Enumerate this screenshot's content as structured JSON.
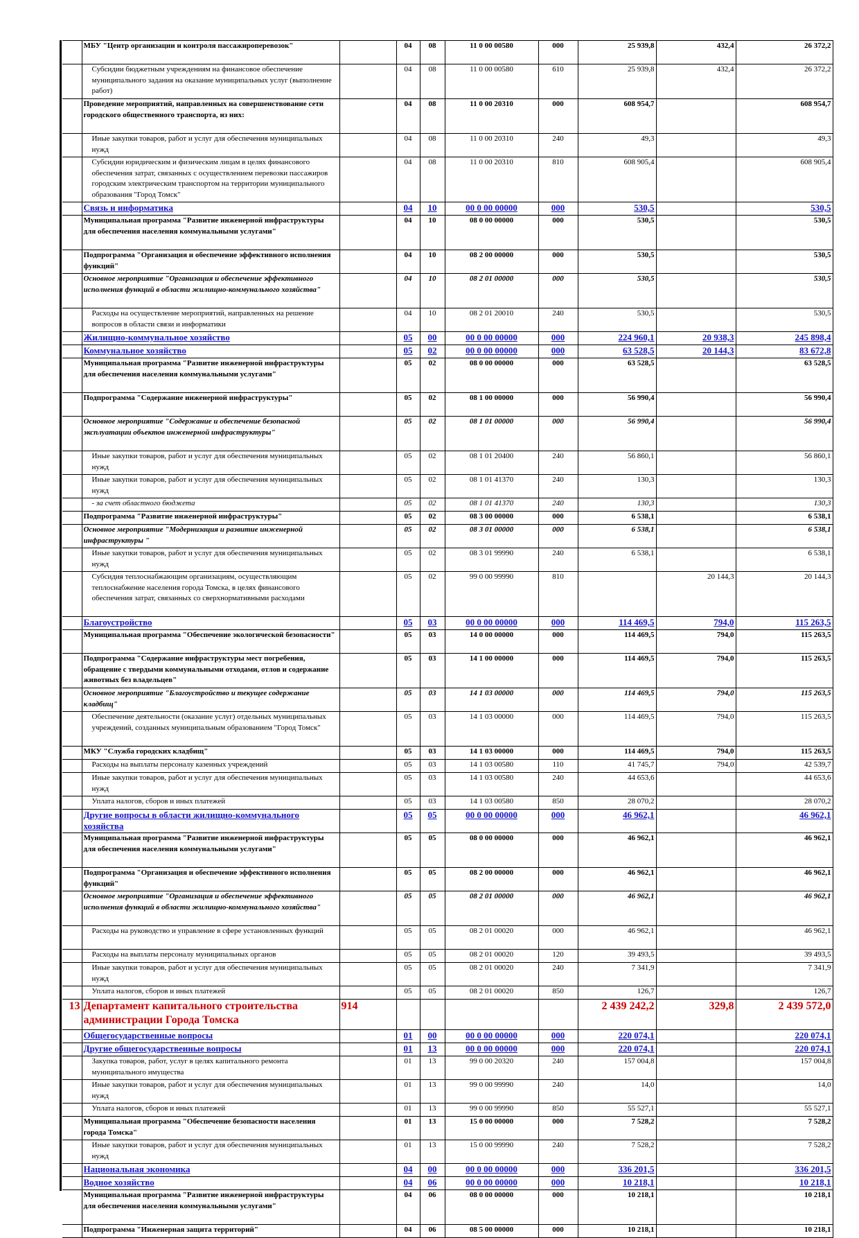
{
  "rows": [
    {
      "style": "b",
      "name": "МБУ \"Центр организации и контроля пассажироперевозок\"",
      "s": "04",
      "ps": "08",
      "csr": "11 0 00 00580",
      "vr": "000",
      "sum1": "25 939,8",
      "chg": "432,4",
      "sum2": "26 372,2",
      "h": 2
    },
    {
      "style": "reg",
      "name": "Субсидии бюджетным учреждениям на финансовое обеспечение муниципального задания на оказание муниципальных услуг (выполнение работ)",
      "s": "04",
      "ps": "08",
      "csr": "11 0 00 00580",
      "vr": "610",
      "sum1": "25 939,8",
      "chg": "432,4",
      "sum2": "26 372,2",
      "h": 3
    },
    {
      "style": "b",
      "name": "Проведение мероприятий, направленных на совершенствование сети городского общественного транспорта, из них:",
      "s": "04",
      "ps": "08",
      "csr": "11 0 00 20310",
      "vr": "000",
      "sum1": "608 954,7",
      "chg": "",
      "sum2": "608 954,7",
      "h": 3
    },
    {
      "style": "reg",
      "name": "Иные закупки товаров, работ и услуг для обеспечения муниципальных нужд",
      "s": "04",
      "ps": "08",
      "csr": "11 0 00 20310",
      "vr": "240",
      "sum1": "49,3",
      "chg": "",
      "sum2": "49,3",
      "h": 2
    },
    {
      "style": "reg",
      "name": "Субсидии юридическим и физическим лицам в целях финансового обеспечения затрат, связанных с осуществлением перевозки пассажиров городским электрическим транспортом на территории муниципального образования \"Город Томск\"",
      "s": "04",
      "ps": "08",
      "csr": "11 0 00 20310",
      "vr": "810",
      "sum1": "608 905,4",
      "chg": "",
      "sum2": "608 905,4",
      "h": 4
    },
    {
      "style": "sec",
      "name": "Связь и информатика",
      "s": "04",
      "ps": "10",
      "csr": "00 0 00 00000",
      "vr": "000",
      "sum1": "530,5",
      "chg": "",
      "sum2": "530,5",
      "h": 1
    },
    {
      "style": "b",
      "name": "Муниципальная программа \"Развитие инженерной инфраструктуры для обеспечения населения коммунальными услугами\"",
      "s": "04",
      "ps": "10",
      "csr": "08 0 00 00000",
      "vr": "000",
      "sum1": "530,5",
      "chg": "",
      "sum2": "530,5",
      "h": 3
    },
    {
      "style": "b",
      "name": "Подпрограмма \"Организация и обеспечение эффективного исполнения функций\"",
      "s": "04",
      "ps": "10",
      "csr": "08 2 00 00000",
      "vr": "000",
      "sum1": "530,5",
      "chg": "",
      "sum2": "530,5",
      "h": 2
    },
    {
      "style": "bi",
      "name": "Основное мероприятие \"Организация и обеспечение эффективного исполнения функций в области жилищно-коммунального хозяйства\"",
      "s": "04",
      "ps": "10",
      "csr": "08 2 01 00000",
      "vr": "000",
      "sum1": "530,5",
      "chg": "",
      "sum2": "530,5",
      "h": 3
    },
    {
      "style": "reg",
      "name": "Расходы на осуществление мероприятий, направленных на решение вопросов в области связи и информатики",
      "s": "04",
      "ps": "10",
      "csr": "08 2 01 20010",
      "vr": "240",
      "sum1": "530,5",
      "chg": "",
      "sum2": "530,5",
      "h": 2
    },
    {
      "style": "sec big",
      "name": "Жилищно-коммунальное хозяйство",
      "s": "05",
      "ps": "00",
      "csr": "00 0 00 00000",
      "vr": "000",
      "sum1": "224 960,1",
      "chg": "20 938,3",
      "sum2": "245 898,4",
      "h": 1
    },
    {
      "style": "sec",
      "name": "Коммунальное хозяйство",
      "s": "05",
      "ps": "02",
      "csr": "00 0 00 00000",
      "vr": "000",
      "sum1": "63 528,5",
      "chg": "20 144,3",
      "sum2": "83 672,8",
      "h": 1
    },
    {
      "style": "b",
      "name": "Муниципальная программа \"Развитие инженерной инфраструктуры для обеспечения населения коммунальными услугами\"",
      "s": "05",
      "ps": "02",
      "csr": "08 0 00 00000",
      "vr": "000",
      "sum1": "63 528,5",
      "chg": "",
      "sum2": "63 528,5",
      "h": 3
    },
    {
      "style": "b",
      "name": "Подпрограмма \"Содержание инженерной инфраструктуры\"",
      "s": "05",
      "ps": "02",
      "csr": "08 1 00 00000",
      "vr": "000",
      "sum1": "56 990,4",
      "chg": "",
      "sum2": "56 990,4",
      "h": 2
    },
    {
      "style": "bi",
      "name": "Основное мероприятие \"Содержание и обеспечение безопасной эксплуатации объектов инженерной инфраструктуры\"",
      "s": "05",
      "ps": "02",
      "csr": "08 1 01 00000",
      "vr": "000",
      "sum1": "56 990,4",
      "chg": "",
      "sum2": "56 990,4",
      "h": 3
    },
    {
      "style": "reg",
      "name": "Иные закупки товаров, работ и услуг для обеспечения муниципальных нужд",
      "s": "05",
      "ps": "02",
      "csr": "08 1 01 20400",
      "vr": "240",
      "sum1": "56 860,1",
      "chg": "",
      "sum2": "56 860,1",
      "h": 2
    },
    {
      "style": "reg",
      "name": "Иные закупки товаров, работ и услуг для обеспечения муниципальных нужд",
      "s": "05",
      "ps": "02",
      "csr": "08 1 01 41370",
      "vr": "240",
      "sum1": "130,3",
      "chg": "",
      "sum2": "130,3",
      "h": 2
    },
    {
      "style": "i reg",
      "name": "- за счет областного бюджета",
      "s": "05",
      "ps": "02",
      "csr": "08 1 01 41370",
      "vr": "240",
      "sum1": "130,3",
      "chg": "",
      "sum2": "130,3",
      "h": 1
    },
    {
      "style": "b",
      "name": "Подпрограмма \"Развитие инженерной инфраструктуры\"",
      "s": "05",
      "ps": "02",
      "csr": "08 3 00 00000",
      "vr": "000",
      "sum1": "6 538,1",
      "chg": "",
      "sum2": "6 538,1",
      "h": 1
    },
    {
      "style": "bi",
      "name": "Основное мероприятие \"Модернизация и развитие инженерной инфраструктуры \"",
      "s": "05",
      "ps": "02",
      "csr": "08 3 01 00000",
      "vr": "000",
      "sum1": "6 538,1",
      "chg": "",
      "sum2": "6 538,1",
      "h": 2
    },
    {
      "style": "reg",
      "name": "Иные закупки товаров, работ и услуг для обеспечения муниципальных нужд",
      "s": "05",
      "ps": "02",
      "csr": "08 3 01 99990",
      "vr": "240",
      "sum1": "6 538,1",
      "chg": "",
      "sum2": "6 538,1",
      "h": 2
    },
    {
      "style": "reg",
      "name": "Субсидия теплоснабжающим организациям, осуществляющим теплоснабжение населения города Томска, в целях финансового обеспечения затрат, связанных со сверхнормативными расходами",
      "s": "05",
      "ps": "02",
      "csr": "99 0 00 99990",
      "vr": "810",
      "sum1": "",
      "chg": "20 144,3",
      "sum2": "20 144,3",
      "h": 4
    },
    {
      "style": "sec",
      "name": "Благоустройство",
      "s": "05",
      "ps": "03",
      "csr": "00 0 00 00000",
      "vr": "000",
      "sum1": "114 469,5",
      "chg": "794,0",
      "sum2": "115 263,5",
      "h": 1
    },
    {
      "style": "b",
      "name": "Муниципальная программа \"Обеспечение экологической безопасности\"",
      "s": "05",
      "ps": "03",
      "csr": "14 0 00 00000",
      "vr": "000",
      "sum1": "114 469,5",
      "chg": "794,0",
      "sum2": "115 263,5",
      "h": 2
    },
    {
      "style": "b",
      "name": "Подпрограмма \"Содержание инфраструктуры мест погребения, обращение с твердыми коммунальными отходами, отлов и содержание животных без владельцев\"",
      "s": "05",
      "ps": "03",
      "csr": "14 1 00 00000",
      "vr": "000",
      "sum1": "114 469,5",
      "chg": "794,0",
      "sum2": "115 263,5",
      "h": 3
    },
    {
      "style": "bi",
      "name": "Основное мероприятие \"Благоустройство и текущее содержание кладбищ\"",
      "s": "05",
      "ps": "03",
      "csr": "14 1 03 00000",
      "vr": "000",
      "sum1": "114 469,5",
      "chg": "794,0",
      "sum2": "115 263,5",
      "h": 2
    },
    {
      "style": "reg",
      "name": "Обеспечение деятельности (оказание услуг) отдельных муниципальных учреждений, созданных муниципальным образованием \"Город Томск\"",
      "s": "05",
      "ps": "03",
      "csr": "14 1 03 00000",
      "vr": "000",
      "sum1": "114 469,5",
      "chg": "794,0",
      "sum2": "115 263,5",
      "h": 3
    },
    {
      "style": "b",
      "name": "МКУ \"Служба городских кладбищ\"",
      "s": "05",
      "ps": "03",
      "csr": "14 1 03 00000",
      "vr": "000",
      "sum1": "114 469,5",
      "chg": "794,0",
      "sum2": "115 263,5",
      "h": 1
    },
    {
      "style": "reg",
      "name": "Расходы на выплаты персоналу казенных учреждений",
      "s": "05",
      "ps": "03",
      "csr": "14 1 03 00580",
      "vr": "110",
      "sum1": "41 745,7",
      "chg": "794,0",
      "sum2": "42 539,7",
      "h": 1
    },
    {
      "style": "reg",
      "name": "Иные закупки товаров, работ и услуг для обеспечения муниципальных нужд",
      "s": "05",
      "ps": "03",
      "csr": "14 1 03 00580",
      "vr": "240",
      "sum1": "44 653,6",
      "chg": "",
      "sum2": "44 653,6",
      "h": 2
    },
    {
      "style": "reg",
      "name": "Уплата налогов, сборов и иных платежей",
      "s": "05",
      "ps": "03",
      "csr": "14 1 03 00580",
      "vr": "850",
      "sum1": "28 070,2",
      "chg": "",
      "sum2": "28 070,2",
      "h": 1
    },
    {
      "style": "sec",
      "name": "Другие вопросы в области жилищно-коммунального хозяйства",
      "s": "05",
      "ps": "05",
      "csr": "00 0 00 00000",
      "vr": "000",
      "sum1": "46 962,1",
      "chg": "",
      "sum2": "46 962,1",
      "h": 2
    },
    {
      "style": "b",
      "name": "Муниципальная программа \"Развитие инженерной инфраструктуры для обеспечения населения коммунальными услугами\"",
      "s": "05",
      "ps": "05",
      "csr": "08 0 00 00000",
      "vr": "000",
      "sum1": "46 962,1",
      "chg": "",
      "sum2": "46 962,1",
      "h": 3
    },
    {
      "style": "b",
      "name": "Подпрограмма \"Организация и обеспечение эффективного исполнения функций\"",
      "s": "05",
      "ps": "05",
      "csr": "08 2 00 00000",
      "vr": "000",
      "sum1": "46 962,1",
      "chg": "",
      "sum2": "46 962,1",
      "h": 2
    },
    {
      "style": "bi",
      "name": "Основное мероприятие \"Организация и обеспечение эффективного исполнения функций в области жилищно-коммунального хозяйства\"",
      "s": "05",
      "ps": "05",
      "csr": "08 2 01 00000",
      "vr": "000",
      "sum1": "46 962,1",
      "chg": "",
      "sum2": "46 962,1",
      "h": 3
    },
    {
      "style": "reg",
      "name": "Расходы на руководство и управление в сфере установленных функций",
      "s": "05",
      "ps": "05",
      "csr": "08 2 01 00020",
      "vr": "000",
      "sum1": "46 962,1",
      "chg": "",
      "sum2": "46 962,1",
      "h": 2
    },
    {
      "style": "reg",
      "name": "Расходы на выплаты персоналу муниципальных органов",
      "s": "05",
      "ps": "05",
      "csr": "08 2 01 00020",
      "vr": "120",
      "sum1": "39 493,5",
      "chg": "",
      "sum2": "39 493,5",
      "h": 1
    },
    {
      "style": "reg",
      "name": "Иные закупки товаров, работ и услуг для обеспечения муниципальных нужд",
      "s": "05",
      "ps": "05",
      "csr": "08 2 01 00020",
      "vr": "240",
      "sum1": "7 341,9",
      "chg": "",
      "sum2": "7 341,9",
      "h": 2
    },
    {
      "style": "reg",
      "name": "Уплата налогов, сборов и иных платежей",
      "s": "05",
      "ps": "05",
      "csr": "08 2 01 00020",
      "vr": "850",
      "sum1": "126,7",
      "chg": "",
      "sum2": "126,7",
      "h": 1
    },
    {
      "style": "dept",
      "num": "13",
      "name": "Департамент капитального строительства администрации Города Томска",
      "grbs": "914",
      "s": "",
      "ps": "",
      "csr": "",
      "vr": "",
      "sum1": "2 439 242,2",
      "chg": "329,8",
      "sum2": "2 439 572,0",
      "h": 2
    },
    {
      "style": "sec big",
      "name": "Общегосударственные вопросы",
      "s": "01",
      "ps": "00",
      "csr": "00 0 00 00000",
      "vr": "000",
      "sum1": "220 074,1",
      "chg": "",
      "sum2": "220 074,1",
      "h": 1
    },
    {
      "style": "sec",
      "name": "Другие общегосударственные вопросы",
      "s": "01",
      "ps": "13",
      "csr": "00 0 00 00000",
      "vr": "000",
      "sum1": "220 074,1",
      "chg": "",
      "sum2": "220 074,1",
      "h": 1
    },
    {
      "style": "reg",
      "name": "Закупка товаров, работ, услуг в целях капитального ремонта муниципального имущества",
      "s": "01",
      "ps": "13",
      "csr": "99 0 00 20320",
      "vr": "240",
      "sum1": "157 004,8",
      "chg": "",
      "sum2": "157 004,8",
      "h": 2
    },
    {
      "style": "reg",
      "name": "Иные закупки товаров, работ и услуг для обеспечения муниципальных нужд",
      "s": "01",
      "ps": "13",
      "csr": "99 0 00 99990",
      "vr": "240",
      "sum1": "14,0",
      "chg": "",
      "sum2": "14,0",
      "h": 2
    },
    {
      "style": "reg",
      "name": "Уплата налогов, сборов и иных платежей",
      "s": "01",
      "ps": "13",
      "csr": "99 0 00 99990",
      "vr": "850",
      "sum1": "55 527,1",
      "chg": "",
      "sum2": "55 527,1",
      "h": 1
    },
    {
      "style": "b",
      "name": "Муниципальная программа \"Обеспечение безопасности населения города Томска\"",
      "s": "01",
      "ps": "13",
      "csr": "15 0 00 00000",
      "vr": "000",
      "sum1": "7 528,2",
      "chg": "",
      "sum2": "7 528,2",
      "h": 2
    },
    {
      "style": "reg",
      "name": "Иные закупки товаров, работ и услуг для обеспечения муниципальных нужд",
      "s": "01",
      "ps": "13",
      "csr": "15 0 00 99990",
      "vr": "240",
      "sum1": "7 528,2",
      "chg": "",
      "sum2": "7 528,2",
      "h": 2
    },
    {
      "style": "sec big",
      "name": "Национальная экономика",
      "s": "04",
      "ps": "00",
      "csr": "00 0 00 00000",
      "vr": "000",
      "sum1": "336 201,5",
      "chg": "",
      "sum2": "336 201,5",
      "h": 1
    },
    {
      "style": "sec",
      "name": "Водное хозяйство",
      "s": "04",
      "ps": "06",
      "csr": "00 0 00 00000",
      "vr": "000",
      "sum1": "10 218,1",
      "chg": "",
      "sum2": "10 218,1",
      "h": 1
    },
    {
      "style": "b",
      "name": "Муниципальная программа \"Развитие инженерной инфраструктуры для обеспечения населения коммунальными услугами\"",
      "s": "04",
      "ps": "06",
      "csr": "08 0 00 00000",
      "vr": "000",
      "sum1": "10 218,1",
      "chg": "",
      "sum2": "10 218,1",
      "h": 3
    },
    {
      "style": "b",
      "name": "Подпрограмма \"Инженерная защита территорий\"",
      "s": "04",
      "ps": "06",
      "csr": "08 5 00 00000",
      "vr": "000",
      "sum1": "10 218,1",
      "chg": "",
      "sum2": "10 218,1",
      "h": 1
    }
  ]
}
